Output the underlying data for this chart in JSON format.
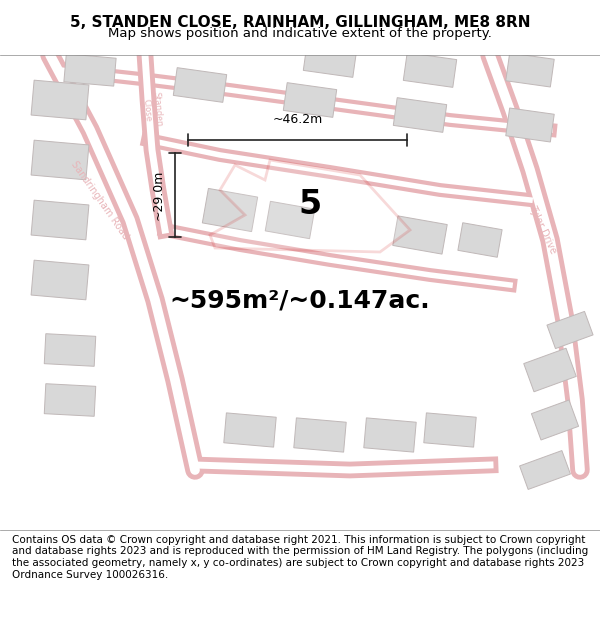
{
  "title_line1": "5, STANDEN CLOSE, RAINHAM, GILLINGHAM, ME8 8RN",
  "title_line2": "Map shows position and indicative extent of the property.",
  "area_text": "~595m²/~0.147ac.",
  "property_number": "5",
  "width_label": "~46.2m",
  "height_label": "~29.0m",
  "footer_text": "Contains OS data © Crown copyright and database right 2021. This information is subject to Crown copyright and database rights 2023 and is reproduced with the permission of HM Land Registry. The polygons (including the associated geometry, namely x, y co-ordinates) are subject to Crown copyright and database rights 2023 Ordnance Survey 100026316.",
  "bg_color": "#f5f5f5",
  "map_bg": "#f0eeee",
  "road_color": "#e8b4b8",
  "road_outline": "#e8b4b8",
  "building_fill": "#d8d8d8",
  "building_edge": "#c0b8b8",
  "property_outline_color": "#cc0000",
  "property_fill": "none",
  "dim_line_color": "#222222",
  "title_fontsize": 11,
  "subtitle_fontsize": 9.5,
  "area_fontsize": 18,
  "prop_num_fontsize": 24,
  "dim_fontsize": 9,
  "footer_fontsize": 7.5
}
